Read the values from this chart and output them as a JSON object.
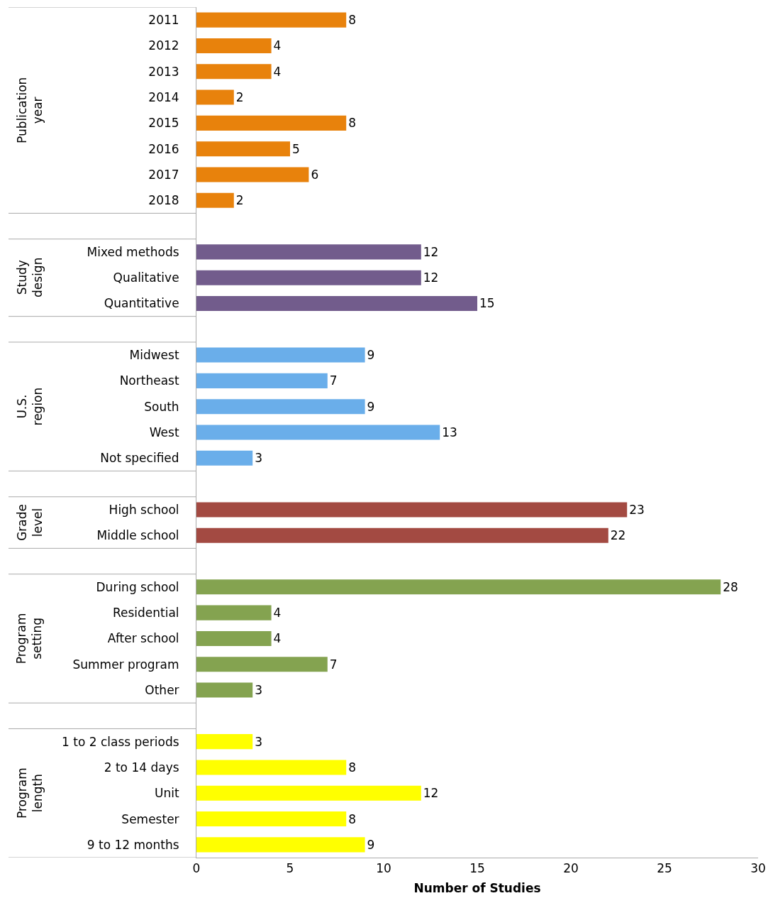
{
  "chart_data": {
    "type": "bar",
    "orientation": "horizontal",
    "xlabel": "Number of Studies",
    "xlim": [
      0,
      30
    ],
    "xticks": [
      0,
      5,
      10,
      15,
      20,
      25,
      30
    ],
    "data_labels": true,
    "legend": false,
    "annotations": [
      "Publication year",
      "Study design",
      "U.S. region",
      "Grade level",
      "Program setting",
      "Program length"
    ],
    "categories": [
      "2011",
      "2012",
      "2013",
      "2014",
      "2015",
      "2016",
      "2017",
      "2018",
      null,
      "Mixed methods",
      "Qualitative",
      "Quantitative",
      null,
      "Midwest",
      "Northeast",
      "South",
      "West",
      "Not specified",
      null,
      "High school",
      "Middle school",
      null,
      "During school",
      "Residential",
      "After school",
      "Summer program",
      "Other",
      null,
      "1 to 2 class periods",
      "2 to 14 days",
      "Unit",
      "Semester",
      "9 to 12 months"
    ],
    "series": [
      {
        "color": "#e8820c",
        "values": [
          8,
          4,
          4,
          2,
          8,
          5,
          6,
          2,
          null,
          null,
          null,
          null,
          null,
          null,
          null,
          null,
          null,
          null,
          null,
          null,
          null,
          null,
          null,
          null,
          null,
          null,
          null,
          null,
          null,
          null,
          null,
          null,
          null
        ]
      },
      {
        "color": "#725c8c",
        "values": [
          null,
          null,
          null,
          null,
          null,
          null,
          null,
          null,
          null,
          12,
          12,
          15,
          null,
          null,
          null,
          null,
          null,
          null,
          null,
          null,
          null,
          null,
          null,
          null,
          null,
          null,
          null,
          null,
          null,
          null,
          null,
          null,
          null
        ]
      },
      {
        "color": "#6aaeea",
        "values": [
          null,
          null,
          null,
          null,
          null,
          null,
          null,
          null,
          null,
          null,
          null,
          null,
          null,
          9,
          7,
          9,
          13,
          3,
          null,
          null,
          null,
          null,
          null,
          null,
          null,
          null,
          null,
          null,
          null,
          null,
          null,
          null,
          null
        ]
      },
      {
        "color": "#a34a42",
        "values": [
          null,
          null,
          null,
          null,
          null,
          null,
          null,
          null,
          null,
          null,
          null,
          null,
          null,
          null,
          null,
          null,
          null,
          null,
          null,
          23,
          22,
          null,
          null,
          null,
          null,
          null,
          null,
          null,
          null,
          null,
          null,
          null,
          null
        ]
      },
      {
        "color": "#84a350",
        "values": [
          null,
          null,
          null,
          null,
          null,
          null,
          null,
          null,
          null,
          null,
          null,
          null,
          null,
          null,
          null,
          null,
          null,
          null,
          null,
          null,
          null,
          null,
          28,
          4,
          4,
          7,
          3,
          null,
          null,
          null,
          null,
          null,
          null
        ]
      },
      {
        "color": "#ffff00",
        "values": [
          null,
          null,
          null,
          null,
          null,
          null,
          null,
          null,
          null,
          null,
          null,
          null,
          null,
          null,
          null,
          null,
          null,
          null,
          null,
          null,
          null,
          null,
          null,
          null,
          null,
          null,
          null,
          null,
          3,
          8,
          12,
          8,
          9
        ]
      }
    ]
  }
}
